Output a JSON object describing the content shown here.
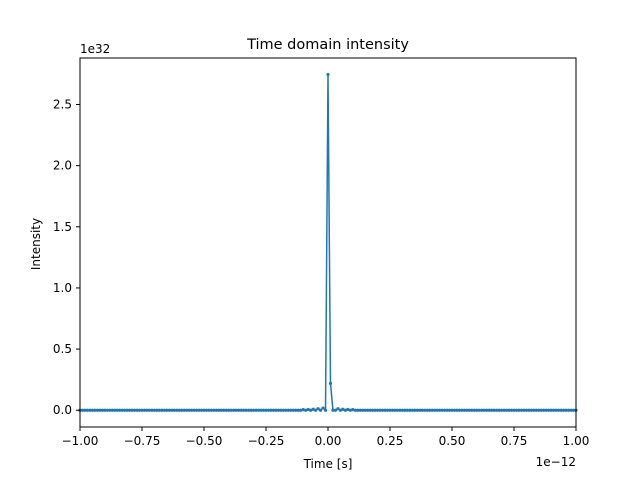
{
  "chart_data": {
    "type": "line",
    "title": "Time domain intensity",
    "xlabel": "Time [s]",
    "ylabel": "Intensity",
    "x_offset_text": "1e−12",
    "y_offset_text": "1e32",
    "x_scale": 1e-12,
    "y_scale": 1e+32,
    "xlim": [
      -1.0,
      1.0
    ],
    "ylim": [
      -0.137,
      2.88
    ],
    "xticks": [
      -1.0,
      -0.75,
      -0.5,
      -0.25,
      0.0,
      0.25,
      0.5,
      0.75,
      1.0
    ],
    "xtick_labels": [
      "−1.00",
      "−0.75",
      "−0.50",
      "−0.25",
      "0.00",
      "0.25",
      "0.50",
      "0.75",
      "1.00"
    ],
    "yticks": [
      0.0,
      0.5,
      1.0,
      1.5,
      2.0,
      2.5
    ],
    "ytick_labels": [
      "0.0",
      "0.5",
      "1.0",
      "1.5",
      "2.0",
      "2.5"
    ],
    "grid": false,
    "legend": "none",
    "series": [
      {
        "color": "#1f77b4",
        "marker": "circle",
        "x_step": 0.01,
        "x": [
          -0.1,
          -0.09,
          -0.08,
          -0.07,
          -0.06,
          -0.05,
          -0.04,
          -0.03,
          -0.02,
          -0.01,
          0.0,
          0.01,
          0.02,
          0.03,
          0.04,
          0.05,
          0.06,
          0.07,
          0.08,
          0.09,
          0.1
        ],
        "y": [
          0.005,
          0.0,
          0.006,
          0.0,
          0.008,
          0.0,
          0.012,
          0.0,
          0.018,
          0.0,
          2.745,
          0.22,
          0.0,
          0.0,
          0.012,
          0.0,
          0.008,
          0.0,
          0.006,
          0.0,
          0.005
        ]
      }
    ]
  }
}
